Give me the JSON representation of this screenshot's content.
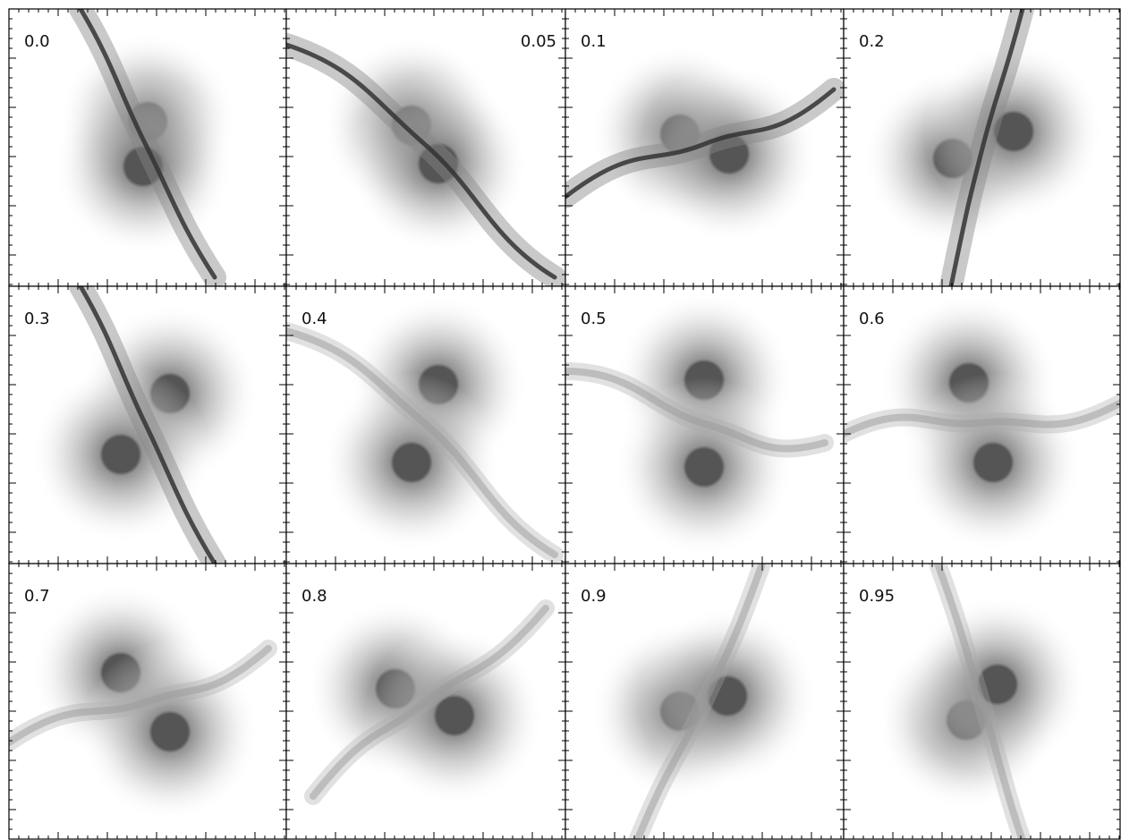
{
  "panels": [
    {
      "label": "0.0"
    },
    {
      "label": "0.05"
    },
    {
      "label": "0.1"
    },
    {
      "label": "0.2"
    },
    {
      "label": "0.3"
    },
    {
      "label": "0.4"
    },
    {
      "label": "0.5"
    },
    {
      "label": "0.6"
    },
    {
      "label": "0.7"
    },
    {
      "label": "0.8"
    },
    {
      "label": "0.9"
    },
    {
      "label": "0.95"
    }
  ]
}
